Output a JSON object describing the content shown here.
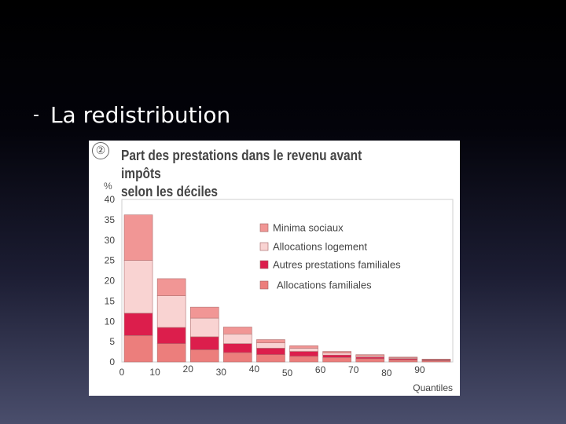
{
  "slide": {
    "bullet_dash": "-",
    "bullet_text": "La redistribution"
  },
  "figure": {
    "number": "②",
    "title_line1": "Part des prestations dans le revenu avant impôts",
    "title_line2": "selon les déciles"
  },
  "chart_data": {
    "type": "bar",
    "stacked": true,
    "title": "Part des prestations dans le revenu avant impôts selon les déciles",
    "ylabel": "%",
    "xlabel": "Quantiles",
    "ylim": [
      0,
      40
    ],
    "yticks": [
      "0",
      "5",
      "10",
      "15",
      "20",
      "25",
      "30",
      "35",
      "40"
    ],
    "xticks": [
      "0",
      "10",
      "20",
      "30",
      "40",
      "50",
      "60",
      "70",
      "80",
      "90"
    ],
    "categories": [
      "0-10",
      "10-20",
      "20-30",
      "30-40",
      "40-50",
      "50-60",
      "60-70",
      "70-80",
      "80-90",
      "90-100"
    ],
    "series": [
      {
        "name": "Allocations familiales",
        "color": "#ec7e7c",
        "values": [
          6.5,
          4.5,
          3.0,
          2.3,
          1.8,
          1.4,
          1.1,
          0.8,
          0.5,
          0.3
        ]
      },
      {
        "name": "Autres prestations familiales",
        "color": "#dc1e4c",
        "values": [
          5.5,
          4.0,
          3.2,
          2.2,
          1.6,
          1.2,
          0.6,
          0.4,
          0.3,
          0.2
        ]
      },
      {
        "name": "Allocations logement",
        "color": "#f9d3d2",
        "values": [
          13.0,
          7.8,
          4.6,
          2.4,
          1.3,
          0.8,
          0.5,
          0.3,
          0.2,
          0.1
        ]
      },
      {
        "name": "Minima sociaux",
        "color": "#f19695",
        "values": [
          11.2,
          4.2,
          2.7,
          1.7,
          0.8,
          0.6,
          0.4,
          0.3,
          0.2,
          0.1
        ]
      }
    ],
    "legend_order": [
      "Minima sociaux",
      "Allocations logement",
      "Autres prestations familiales",
      "Allocations familiales"
    ],
    "legend_position": "top-right",
    "grid": false
  }
}
